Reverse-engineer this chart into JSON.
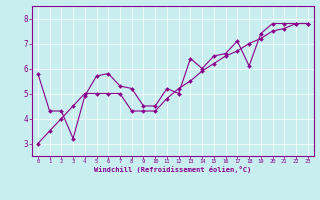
{
  "xlabel": "Windchill (Refroidissement éolien,°C)",
  "background_color": "#c8eef0",
  "line_color": "#8b008b",
  "xlim": [
    -0.5,
    23.5
  ],
  "ylim": [
    2.5,
    8.5
  ],
  "xticks": [
    0,
    1,
    2,
    3,
    4,
    5,
    6,
    7,
    8,
    9,
    10,
    11,
    12,
    13,
    14,
    15,
    16,
    17,
    18,
    19,
    20,
    21,
    22,
    23
  ],
  "yticks": [
    3,
    4,
    5,
    6,
    7,
    8
  ],
  "series1_x": [
    0,
    1,
    2,
    3,
    4,
    5,
    6,
    7,
    8,
    9,
    10,
    11,
    12,
    13,
    14,
    15,
    16,
    17,
    18,
    19,
    20,
    21,
    22,
    23
  ],
  "series1_y": [
    5.8,
    4.3,
    4.3,
    3.2,
    4.9,
    5.7,
    5.8,
    5.3,
    5.2,
    4.5,
    4.5,
    5.2,
    5.0,
    6.4,
    6.0,
    6.5,
    6.6,
    7.1,
    6.1,
    7.4,
    7.8,
    7.8,
    7.8,
    7.8
  ],
  "series2_x": [
    0,
    1,
    2,
    3,
    4,
    5,
    6,
    7,
    8,
    9,
    10,
    11,
    12,
    13,
    14,
    15,
    16,
    17,
    18,
    19,
    20,
    21,
    22,
    23
  ],
  "series2_y": [
    3.0,
    3.5,
    4.0,
    4.5,
    5.0,
    5.0,
    5.0,
    5.0,
    4.3,
    4.3,
    4.3,
    4.8,
    5.2,
    5.5,
    5.9,
    6.2,
    6.5,
    6.7,
    7.0,
    7.2,
    7.5,
    7.6,
    7.8,
    7.8
  ]
}
